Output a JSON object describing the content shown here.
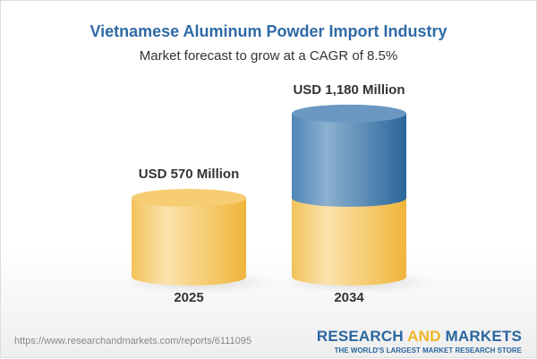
{
  "title": "Vietnamese Aluminum Powder Import Industry",
  "subtitle": "Market forecast to grow at a CAGR of 8.5%",
  "chart_data": {
    "type": "bar",
    "style": "3d-cylinder",
    "categories": [
      "2025",
      "2034"
    ],
    "values": [
      570,
      1180
    ],
    "data_labels": [
      "USD 570 Million",
      "USD 1,180 Million"
    ],
    "unit": "USD Million",
    "cagr": "8.5%",
    "colors": {
      "base": "#f3c34f",
      "growth": "#3d78ad"
    }
  },
  "footer": {
    "url": "https://www.researchandmarkets.com/reports/6111095",
    "logo_word1": "RESEARCH",
    "logo_word2": "AND",
    "logo_word3": "MARKETS",
    "logo_tagline": "THE WORLD'S LARGEST MARKET RESEARCH STORE"
  }
}
